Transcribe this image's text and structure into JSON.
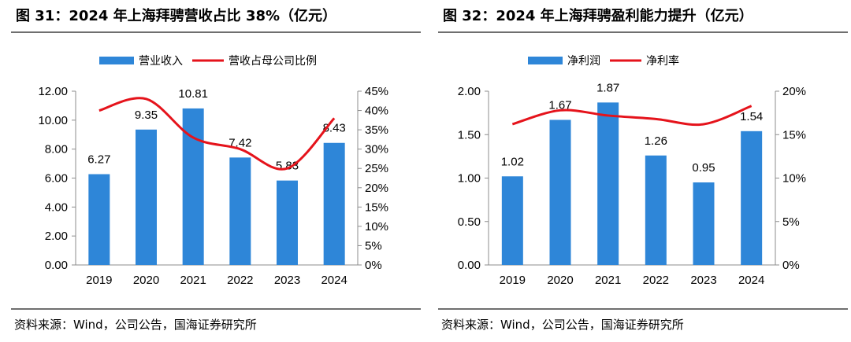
{
  "charts": [
    {
      "title": "图 31：2024 年上海拜骋营收占比 38%（亿元）",
      "source": "资料来源：Wind，公司公告，国海证券研究所"
    },
    {
      "title": "图 32：2024 年上海拜骋盈利能力提升（亿元）",
      "source": "资料来源：Wind，公司公告，国海证券研究所"
    }
  ],
  "colors": {
    "bar": "#2E86D8",
    "line": "#E5131B",
    "axis": "#8c8c8c"
  },
  "chart_data": [
    {
      "type": "bar",
      "categories": [
        "2019",
        "2020",
        "2021",
        "2022",
        "2023",
        "2024"
      ],
      "series": [
        {
          "name": "营业收入",
          "type": "bar",
          "axis": "left",
          "values": [
            6.27,
            9.35,
            10.81,
            7.42,
            5.83,
            8.43
          ],
          "labels": [
            "6.27",
            "9.35",
            "10.81",
            "7.42",
            "5.83",
            "8.43"
          ]
        },
        {
          "name": "营收占母公司比例",
          "type": "line",
          "axis": "right",
          "values": [
            40,
            43,
            33,
            30,
            25,
            38
          ]
        }
      ],
      "ylim": [
        0,
        12
      ],
      "yticks": [
        "0.00",
        "2.00",
        "4.00",
        "6.00",
        "8.00",
        "10.00",
        "12.00"
      ],
      "y2lim": [
        0,
        45
      ],
      "y2ticks": [
        "0%",
        "5%",
        "10%",
        "15%",
        "20%",
        "25%",
        "30%",
        "35%",
        "40%",
        "45%"
      ],
      "legend": "top-center",
      "grid": false
    },
    {
      "type": "bar",
      "categories": [
        "2019",
        "2020",
        "2021",
        "2022",
        "2023",
        "2024"
      ],
      "series": [
        {
          "name": "净利润",
          "type": "bar",
          "axis": "left",
          "values": [
            1.02,
            1.67,
            1.87,
            1.26,
            0.95,
            1.54
          ],
          "labels": [
            "1.02",
            "1.67",
            "1.87",
            "1.26",
            "0.95",
            "1.54"
          ]
        },
        {
          "name": "净利率",
          "type": "line",
          "axis": "right",
          "values": [
            16.2,
            17.8,
            17.2,
            16.8,
            16.2,
            18.3
          ]
        }
      ],
      "ylim": [
        0,
        2
      ],
      "yticks": [
        "0.00",
        "0.50",
        "1.00",
        "1.50",
        "2.00"
      ],
      "y2lim": [
        0,
        20
      ],
      "y2ticks": [
        "0%",
        "5%",
        "10%",
        "15%",
        "20%"
      ],
      "legend": "top-center",
      "grid": false
    }
  ]
}
